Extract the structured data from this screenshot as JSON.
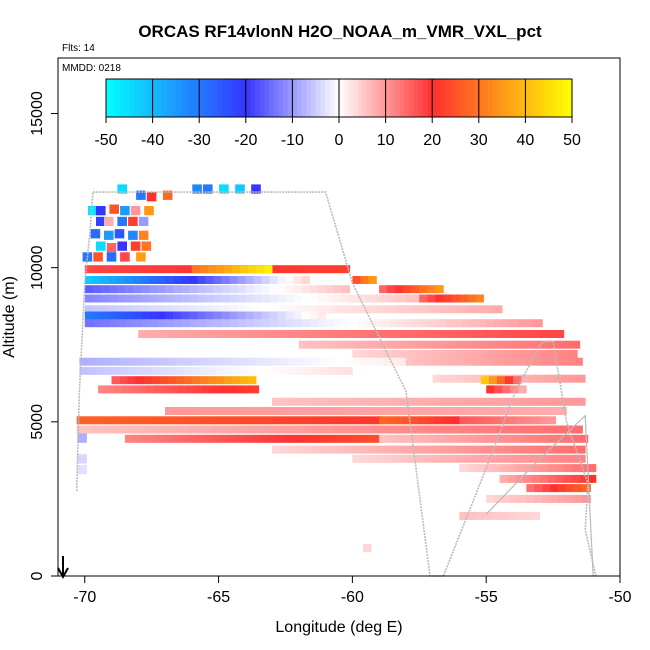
{
  "chart_data": {
    "type": "heatmap",
    "title": "ORCAS RF14vlonN H2O_NOAA_m_VMR_VXL_pct",
    "flts_label": "Flts: 14",
    "mmdd_label": "MMDD: 0218",
    "xlabel": "Longitude (deg E)",
    "ylabel": "Altitude (m)",
    "xlim": [
      -71,
      -50
    ],
    "ylim": [
      0,
      16800
    ],
    "x_ticks": [
      -70,
      -65,
      -60,
      -55,
      -50
    ],
    "x_tick_labels": [
      "-70",
      "-65",
      "-60",
      "-55",
      "-50"
    ],
    "y_ticks": [
      0,
      5000,
      10000,
      15000
    ],
    "y_tick_labels": [
      "0",
      "5000",
      "10000",
      "15000"
    ],
    "colorbar": {
      "range": [
        -50,
        50
      ],
      "ticks": [
        -50,
        -40,
        -30,
        -20,
        -10,
        0,
        10,
        20,
        30,
        40,
        50
      ],
      "tick_labels": [
        "-50",
        "-40",
        "-30",
        "-20",
        "-10",
        "0",
        "10",
        "20",
        "30",
        "40",
        "50"
      ]
    },
    "colors": {
      "neg_max": "#00ffff",
      "neg_mid": "#3535ff",
      "zero": "#ffffff",
      "pos_mid": "#ff3030",
      "pos_max": "#ffff00",
      "track": "#bbbbbb"
    },
    "bands": [
      {
        "alt": 9950,
        "x0": -70.0,
        "x1": -60.0,
        "v0": 18,
        "v1": 22
      },
      {
        "alt": 9950,
        "x0": -66.0,
        "x1": -63.0,
        "v0": 30,
        "v1": 48
      },
      {
        "alt": 9600,
        "x0": -70.0,
        "x1": -61.5,
        "v0": -42,
        "v1": 4
      },
      {
        "alt": 9600,
        "x0": -60.0,
        "x1": -59.2,
        "v0": 25,
        "v1": 35
      },
      {
        "alt": 9300,
        "x0": -70.0,
        "x1": -60.0,
        "v0": -16,
        "v1": 6
      },
      {
        "alt": 9300,
        "x0": -59.0,
        "x1": -56.5,
        "v0": 15,
        "v1": 35
      },
      {
        "alt": 9000,
        "x0": -70.0,
        "x1": -57.5,
        "v0": -12,
        "v1": 6
      },
      {
        "alt": 9000,
        "x0": -57.5,
        "x1": -55.0,
        "v0": 15,
        "v1": 32
      },
      {
        "alt": 8650,
        "x0": -70.0,
        "x1": -54.5,
        "v0": -6,
        "v1": 8
      },
      {
        "alt": 8450,
        "x0": -70.0,
        "x1": -61.0,
        "v0": -30,
        "v1": 2
      },
      {
        "alt": 8200,
        "x0": -70.0,
        "x1": -53.0,
        "v0": -14,
        "v1": 10
      },
      {
        "alt": 7850,
        "x0": -68.0,
        "x1": -52.0,
        "v0": 8,
        "v1": 18
      },
      {
        "alt": 7500,
        "x0": -62.0,
        "x1": -51.5,
        "v0": 6,
        "v1": 14
      },
      {
        "alt": 7200,
        "x0": -60.0,
        "x1": -51.5,
        "v0": 4,
        "v1": 12
      },
      {
        "alt": 6950,
        "x0": -70.2,
        "x1": -58.0,
        "v0": -8,
        "v1": 2
      },
      {
        "alt": 6950,
        "x0": -58.0,
        "x1": -51.3,
        "v0": 6,
        "v1": 12
      },
      {
        "alt": 6650,
        "x0": -70.2,
        "x1": -60.0,
        "v0": -6,
        "v1": 3
      },
      {
        "alt": 6400,
        "x0": -57.0,
        "x1": -51.3,
        "v0": 4,
        "v1": 10
      },
      {
        "alt": 6350,
        "x0": -69.0,
        "x1": -63.5,
        "v0": 16,
        "v1": 40
      },
      {
        "alt": 6350,
        "x0": -55.2,
        "x1": -53.8,
        "v0": 42,
        "v1": 14
      },
      {
        "alt": 6050,
        "x0": -69.5,
        "x1": -63.5,
        "v0": 12,
        "v1": 22
      },
      {
        "alt": 6050,
        "x0": -55.0,
        "x1": -53.5,
        "v0": 20,
        "v1": 8
      },
      {
        "alt": 5650,
        "x0": -63.0,
        "x1": -51.3,
        "v0": 6,
        "v1": 10
      },
      {
        "alt": 5350,
        "x0": -67.0,
        "x1": -52.0,
        "v0": 10,
        "v1": 8
      },
      {
        "alt": 5050,
        "x0": -70.3,
        "x1": -59.0,
        "v0": 27,
        "v1": 21
      },
      {
        "alt": 5050,
        "x0": -59.0,
        "x1": -56.0,
        "v0": 28,
        "v1": 20
      },
      {
        "alt": 5050,
        "x0": -56.0,
        "x1": -52.5,
        "v0": 16,
        "v1": 10
      },
      {
        "alt": 4750,
        "x0": -70.3,
        "x1": -51.3,
        "v0": 6,
        "v1": 14
      },
      {
        "alt": 4450,
        "x0": -68.5,
        "x1": -59.0,
        "v0": 12,
        "v1": 24
      },
      {
        "alt": 4450,
        "x0": -59.0,
        "x1": -51.3,
        "v0": 6,
        "v1": 14
      },
      {
        "alt": 4100,
        "x0": -63.0,
        "x1": -51.3,
        "v0": 4,
        "v1": 14
      },
      {
        "alt": 3800,
        "x0": -60.0,
        "x1": -51.3,
        "v0": 4,
        "v1": 12
      },
      {
        "alt": 3500,
        "x0": -56.0,
        "x1": -51.0,
        "v0": 4,
        "v1": 14
      },
      {
        "alt": 3150,
        "x0": -54.5,
        "x1": -51.0,
        "v0": 8,
        "v1": 20
      },
      {
        "alt": 2850,
        "x0": -53.5,
        "x1": -51.0,
        "v0": 14,
        "v1": 28
      },
      {
        "alt": 2500,
        "x0": -55.0,
        "x1": -51.2,
        "v0": 4,
        "v1": 10
      },
      {
        "alt": 1950,
        "x0": -56.0,
        "x1": -53.0,
        "v0": 6,
        "v1": 4
      },
      {
        "alt": 900,
        "x0": -59.6,
        "x1": -59.2,
        "v0": 4,
        "v1": 4
      }
    ],
    "cells": [
      [
        -70.1,
        4470,
        -8
      ],
      [
        -70.1,
        3800,
        -4
      ],
      [
        -70.1,
        3450,
        -3
      ],
      [
        -68.6,
        12550,
        -45
      ],
      [
        -67.9,
        12350,
        -30
      ],
      [
        -67.5,
        12300,
        20
      ],
      [
        -66.9,
        12350,
        28
      ],
      [
        -65.8,
        12550,
        -32
      ],
      [
        -65.4,
        12550,
        -30
      ],
      [
        -64.8,
        12550,
        -45
      ],
      [
        -64.2,
        12550,
        -42
      ],
      [
        -63.6,
        12550,
        -20
      ],
      [
        -69.7,
        11850,
        -46
      ],
      [
        -69.4,
        11850,
        -20
      ],
      [
        -68.9,
        11900,
        25
      ],
      [
        -68.5,
        11850,
        -35
      ],
      [
        -68.1,
        11850,
        10
      ],
      [
        -67.6,
        11850,
        35
      ],
      [
        -69.4,
        11500,
        -22
      ],
      [
        -69.1,
        11500,
        8
      ],
      [
        -68.6,
        11500,
        -30
      ],
      [
        -68.2,
        11500,
        22
      ],
      [
        -67.8,
        11500,
        -10
      ],
      [
        -69.6,
        11100,
        -28
      ],
      [
        -69.1,
        11050,
        -35
      ],
      [
        -68.7,
        11100,
        -25
      ],
      [
        -68.2,
        11050,
        -32
      ],
      [
        -67.8,
        11050,
        32
      ],
      [
        -69.4,
        10700,
        -45
      ],
      [
        -69.0,
        10650,
        15
      ],
      [
        -68.6,
        10700,
        -20
      ],
      [
        -68.1,
        10700,
        22
      ],
      [
        -67.7,
        10700,
        30
      ],
      [
        -69.9,
        10350,
        -30
      ],
      [
        -69.5,
        10350,
        25
      ],
      [
        -69.0,
        10350,
        -28
      ],
      [
        -68.5,
        10350,
        18
      ],
      [
        -67.9,
        10350,
        36
      ]
    ],
    "track": [
      [
        -70.3,
        2750
      ],
      [
        -70.2,
        6000
      ],
      [
        -70.0,
        9500
      ],
      [
        -69.8,
        11200
      ],
      [
        -69.7,
        12450
      ],
      [
        -62.7,
        12450
      ],
      [
        -61.0,
        12450
      ],
      [
        -60.0,
        9500
      ],
      [
        -58.0,
        6000
      ],
      [
        -57.1,
        0
      ],
      [
        -56.6,
        0
      ],
      [
        -55.0,
        3500
      ],
      [
        -53.9,
        6000
      ],
      [
        -52.9,
        7600
      ],
      [
        -52.5,
        7600
      ],
      [
        -52.0,
        5000
      ],
      [
        -51.2,
        3000
      ],
      [
        -51.3,
        1500
      ],
      [
        -50.9,
        0
      ]
    ],
    "track2": [
      [
        -55.0,
        2000
      ],
      [
        -53.0,
        3800
      ],
      [
        -51.3,
        5200
      ],
      [
        -51.0,
        0
      ]
    ]
  }
}
